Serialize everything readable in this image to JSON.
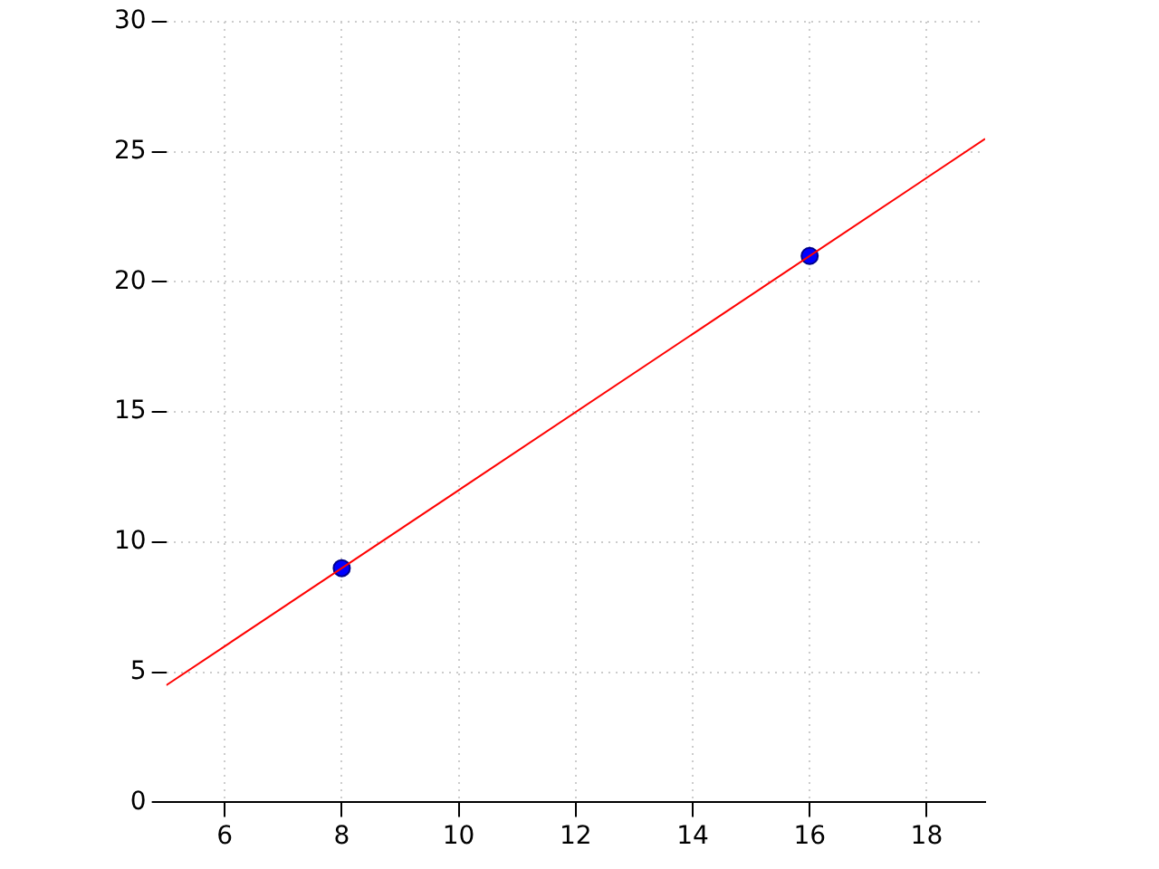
{
  "chart_data": {
    "type": "scatter",
    "series": [
      {
        "type": "line",
        "color": "#ff0000",
        "x": [
          5,
          19
        ],
        "values": [
          4.5,
          25.5
        ],
        "marker": "none",
        "line_style": "solid"
      },
      {
        "color": "#0000ff",
        "x": [
          8,
          16
        ],
        "values": [
          9,
          21
        ],
        "marker": "circle"
      }
    ],
    "xlim": [
      5,
      19
    ],
    "xticks": [
      6,
      8,
      10,
      12,
      14,
      16,
      18
    ],
    "ylim": [
      0,
      30
    ],
    "yticks": [
      0,
      5,
      10,
      15,
      20,
      25,
      30
    ],
    "grid": true,
    "legend": false
  }
}
